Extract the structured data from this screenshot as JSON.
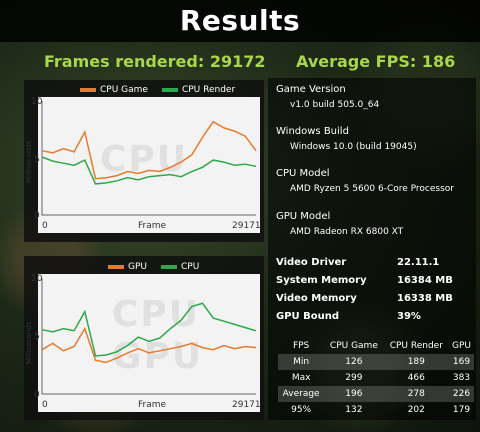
{
  "title": "Results",
  "frames_rendered": "Frames rendered: 29172",
  "average_fps": "Average FPS: 186",
  "cpu_chart": {
    "legend": [
      "CPU Game",
      "CPU Render"
    ],
    "colors": [
      "#e87a2c",
      "#2ea84a"
    ],
    "watermark": "CPU",
    "ylabel": "Milliseconds",
    "xlabel": "Frame",
    "y_ticks": [
      "10",
      "5",
      "0"
    ],
    "x_start": "0",
    "x_end": "29171"
  },
  "gpu_chart": {
    "legend": [
      "GPU",
      "CPU"
    ],
    "colors": [
      "#e87a2c",
      "#2ea84a"
    ],
    "watermark_1": "CPU",
    "watermark_2": "GPU",
    "ylabel": "Milliseconds",
    "xlabel": "Frame",
    "y_ticks": [
      "10",
      "5",
      "0"
    ],
    "x_start": "0",
    "x_end": "29171"
  },
  "chart_data": [
    {
      "type": "line",
      "x": [
        0,
        0.05,
        0.1,
        0.15,
        0.2,
        0.25,
        0.3,
        0.35,
        0.4,
        0.45,
        0.5,
        0.55,
        0.6,
        0.65,
        0.7,
        0.75,
        0.8,
        0.85,
        0.9,
        0.95,
        1.0
      ],
      "series": [
        {
          "name": "CPU Game",
          "values": [
            6.2,
            6.0,
            6.4,
            6.1,
            8.0,
            3.5,
            3.6,
            3.8,
            4.2,
            4.0,
            4.3,
            4.2,
            4.6,
            5.1,
            5.8,
            7.5,
            9.0,
            8.4,
            8.1,
            7.6,
            6.2
          ]
        },
        {
          "name": "CPU Render",
          "values": [
            5.6,
            5.2,
            5.0,
            4.8,
            5.3,
            3.0,
            3.1,
            3.3,
            3.6,
            3.4,
            3.7,
            3.8,
            3.9,
            3.7,
            4.2,
            4.6,
            5.3,
            5.1,
            4.8,
            4.9,
            4.7
          ]
        }
      ],
      "xlabel": "Frame",
      "ylabel": "Milliseconds",
      "ylim": [
        0,
        11
      ]
    },
    {
      "type": "line",
      "x": [
        0,
        0.05,
        0.1,
        0.15,
        0.2,
        0.25,
        0.3,
        0.35,
        0.4,
        0.45,
        0.5,
        0.55,
        0.6,
        0.65,
        0.7,
        0.75,
        0.8,
        0.85,
        0.9,
        0.95,
        1.0
      ],
      "series": [
        {
          "name": "GPU",
          "values": [
            4.2,
            4.8,
            4.1,
            4.5,
            6.2,
            3.2,
            3.0,
            3.4,
            3.9,
            4.3,
            3.9,
            4.1,
            4.3,
            4.5,
            4.8,
            4.4,
            4.2,
            4.6,
            4.3,
            4.5,
            4.4
          ]
        },
        {
          "name": "CPU",
          "values": [
            6.1,
            5.9,
            6.2,
            6.0,
            7.8,
            3.6,
            3.7,
            4.0,
            4.6,
            5.4,
            5.0,
            5.3,
            6.2,
            7.0,
            8.3,
            8.6,
            7.2,
            6.9,
            6.6,
            6.3,
            6.0
          ]
        }
      ],
      "xlabel": "Frame",
      "ylabel": "Milliseconds",
      "ylim": [
        0,
        11
      ]
    }
  ],
  "info": {
    "game_version_label": "Game Version",
    "game_version": "v1.0 build 505.0_64",
    "windows_build_label": "Windows Build",
    "windows_build": "Windows 10.0 (build 19045)",
    "cpu_model_label": "CPU Model",
    "cpu_model": "AMD Ryzen 5 5600 6-Core Processor",
    "gpu_model_label": "GPU Model",
    "gpu_model": "AMD Radeon RX 6800 XT"
  },
  "specs": [
    {
      "label": "Video Driver",
      "value": "22.11.1"
    },
    {
      "label": "System Memory",
      "value": "16384 MB"
    },
    {
      "label": "Video Memory",
      "value": "16338 MB"
    },
    {
      "label": "GPU Bound",
      "value": "39%"
    }
  ],
  "stats": {
    "headers": [
      "FPS",
      "CPU Game",
      "CPU Render",
      "GPU"
    ],
    "rows": [
      [
        "Min",
        "126",
        "189",
        "169"
      ],
      [
        "Max",
        "299",
        "466",
        "383"
      ],
      [
        "Average",
        "196",
        "278",
        "226"
      ],
      [
        "95%",
        "132",
        "202",
        "179"
      ]
    ]
  }
}
